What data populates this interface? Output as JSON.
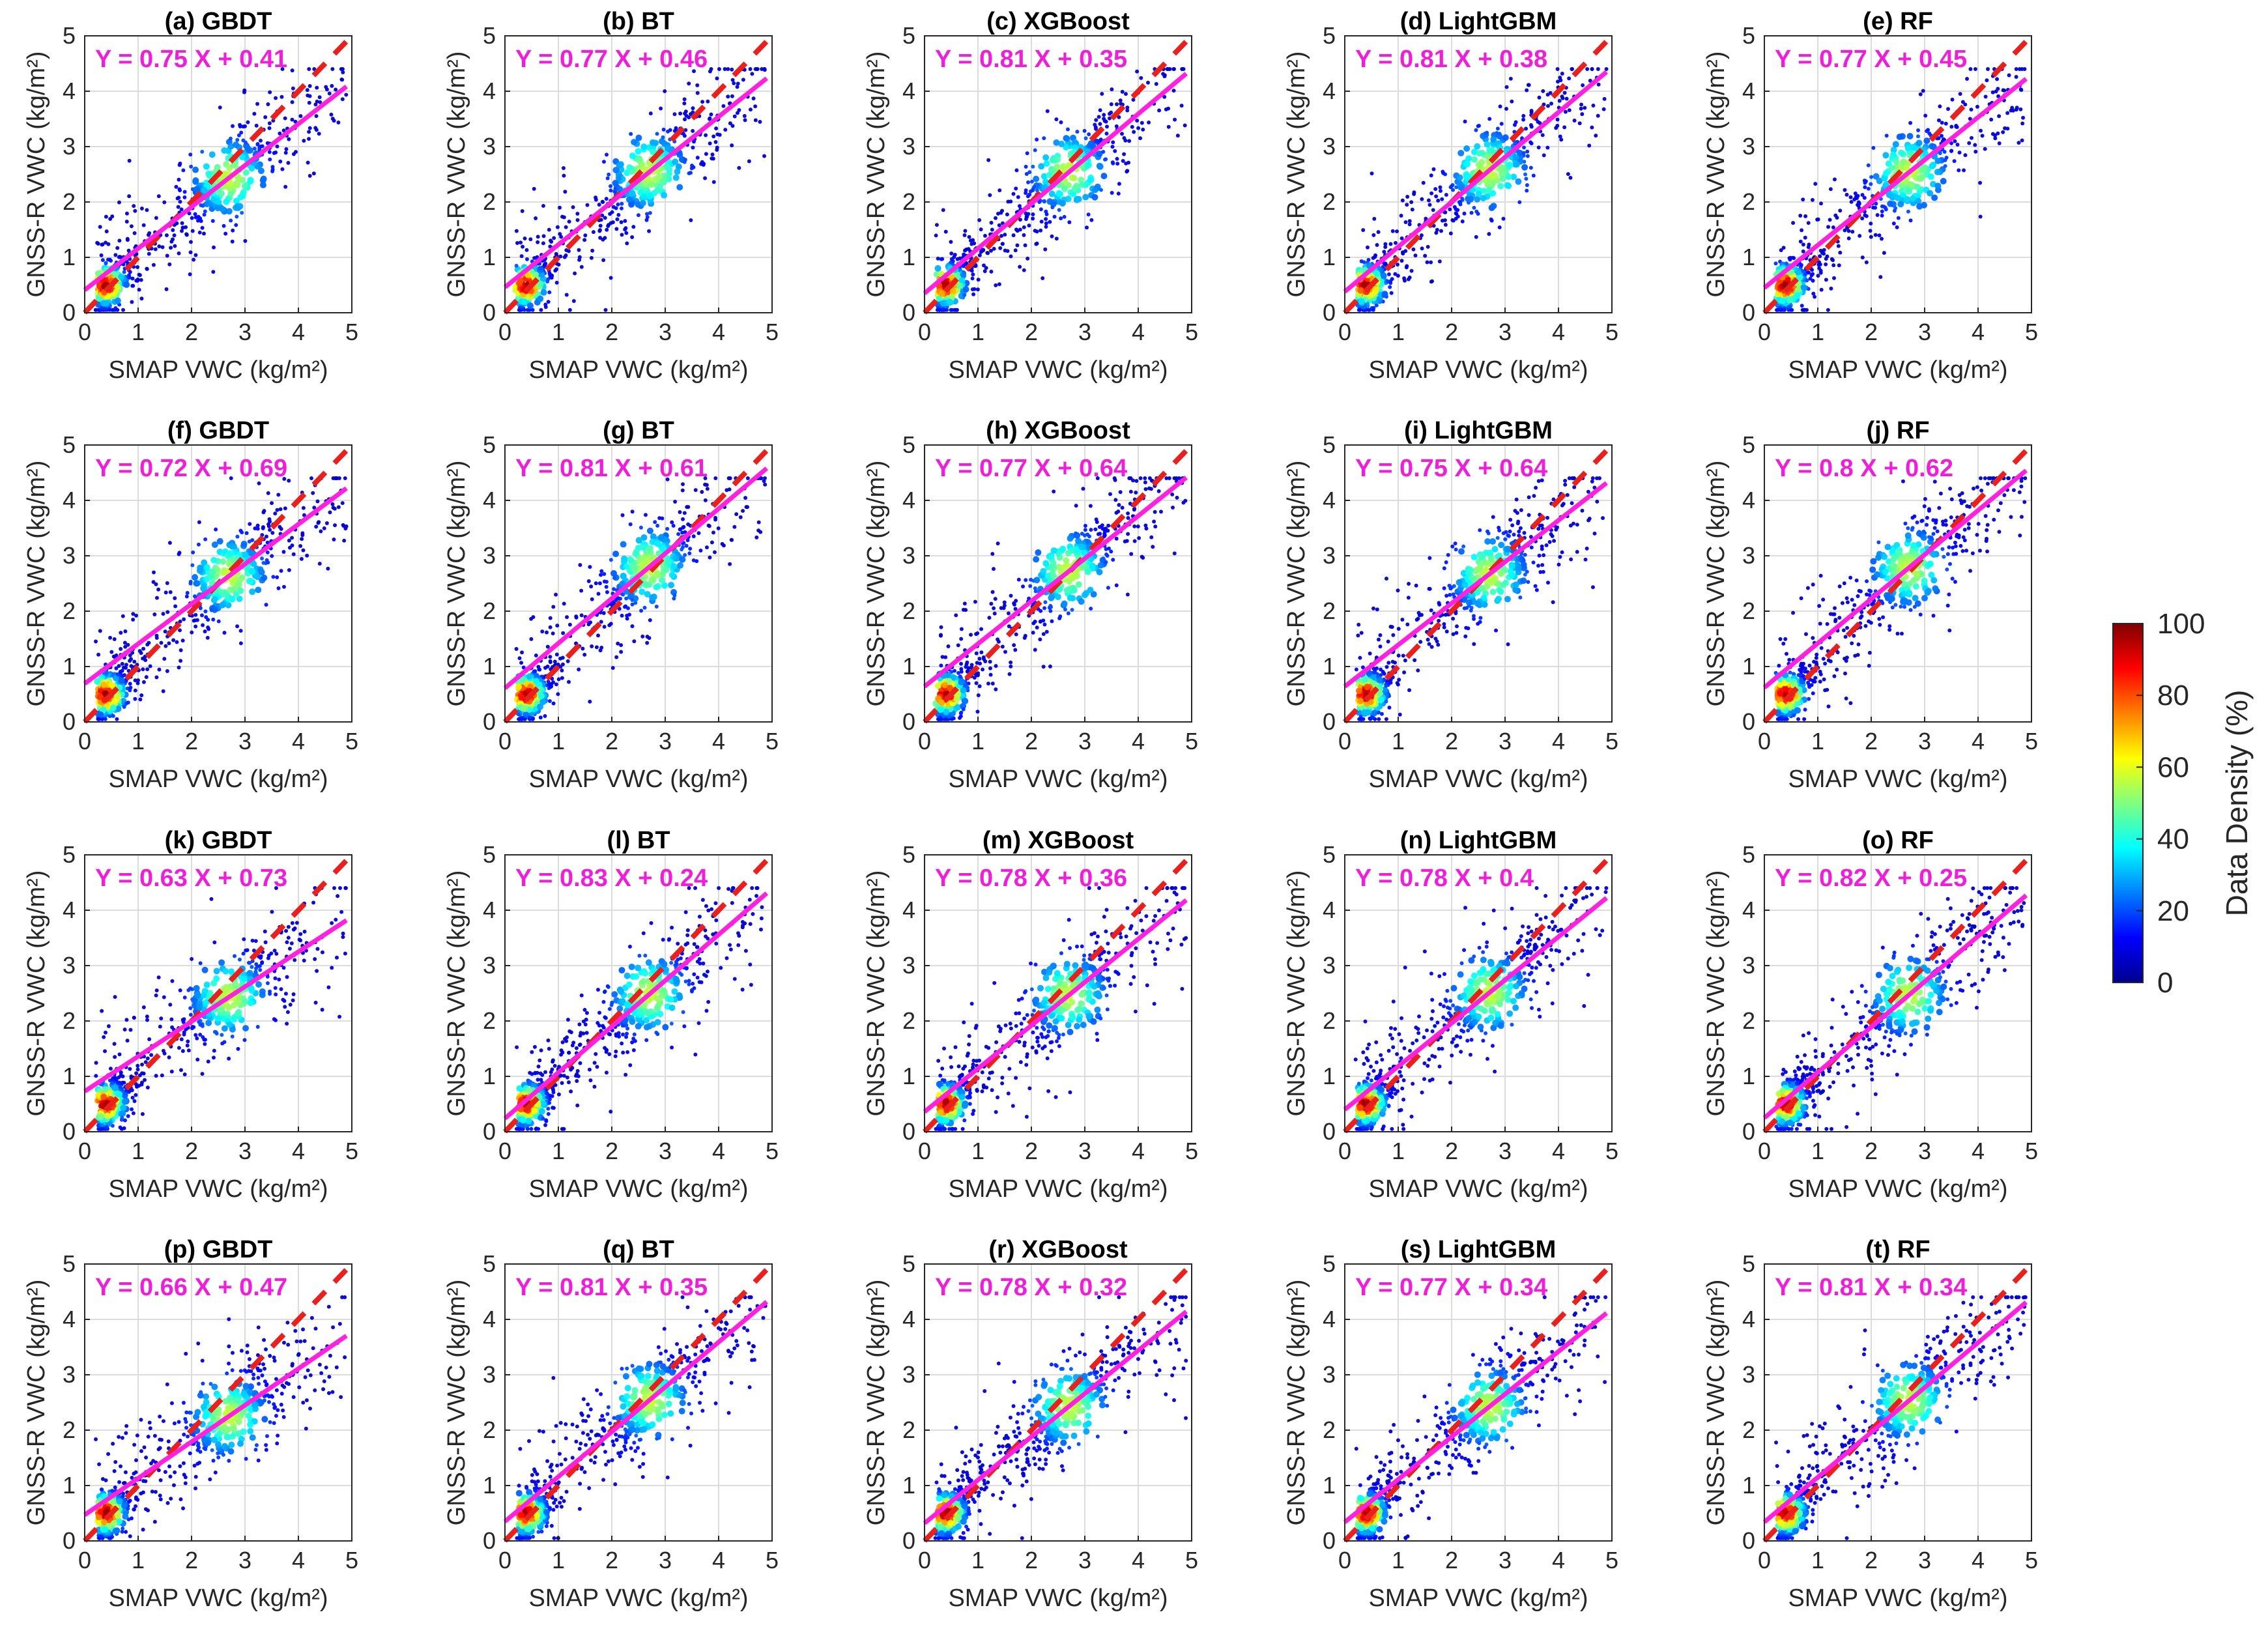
{
  "chart_data": {
    "type": "scatter",
    "layout": "grid 4 rows x 5 columns",
    "xlabel": "SMAP VWC (kg/m²)",
    "ylabel": "GNSS-R VWC (kg/m²)",
    "xlim": [
      0,
      5
    ],
    "ylim": [
      0,
      5
    ],
    "x_ticks": [
      "0",
      "1",
      "2",
      "3",
      "4",
      "5"
    ],
    "y_ticks": [
      "0",
      "1",
      "2",
      "3",
      "4",
      "5"
    ],
    "grid": true,
    "reference_line": {
      "name": "1:1 line",
      "style": "dashed",
      "color": "#e8201e",
      "from": [
        0,
        0
      ],
      "to": [
        5,
        5
      ]
    },
    "fit_line_color": "#ff22dd",
    "colors": {
      "equation": "#ee1fd8",
      "axis": "#262626",
      "grid": "#dcdcdc"
    },
    "colorbar": {
      "label": "Data Density (%)",
      "min": 0,
      "max": 100,
      "ticks": [
        "0",
        "20",
        "40",
        "60",
        "80",
        "100"
      ],
      "colormap": "jet"
    },
    "panels": [
      {
        "title": "(a) GBDT",
        "equation": "Y = 0.75 X + 0.41",
        "slope": 0.75,
        "intercept": 0.41
      },
      {
        "title": "(b) BT",
        "equation": "Y = 0.77 X + 0.46",
        "slope": 0.77,
        "intercept": 0.46
      },
      {
        "title": "(c) XGBoost",
        "equation": "Y = 0.81 X + 0.35",
        "slope": 0.81,
        "intercept": 0.35
      },
      {
        "title": "(d) LightGBM",
        "equation": "Y = 0.81 X + 0.38",
        "slope": 0.81,
        "intercept": 0.38
      },
      {
        "title": "(e) RF",
        "equation": "Y = 0.77 X + 0.45",
        "slope": 0.77,
        "intercept": 0.45
      },
      {
        "title": "(f) GBDT",
        "equation": "Y = 0.72 X + 0.69",
        "slope": 0.72,
        "intercept": 0.69
      },
      {
        "title": "(g) BT",
        "equation": "Y = 0.81 X + 0.61",
        "slope": 0.81,
        "intercept": 0.61
      },
      {
        "title": "(h) XGBoost",
        "equation": "Y = 0.77 X + 0.64",
        "slope": 0.77,
        "intercept": 0.64
      },
      {
        "title": "(i) LightGBM",
        "equation": "Y = 0.75 X + 0.64",
        "slope": 0.75,
        "intercept": 0.64
      },
      {
        "title": "(j) RF",
        "equation": "Y = 0.8 X + 0.62",
        "slope": 0.8,
        "intercept": 0.62
      },
      {
        "title": "(k) GBDT",
        "equation": "Y = 0.63 X + 0.73",
        "slope": 0.63,
        "intercept": 0.73
      },
      {
        "title": "(l) BT",
        "equation": "Y = 0.83 X + 0.24",
        "slope": 0.83,
        "intercept": 0.24
      },
      {
        "title": "(m) XGBoost",
        "equation": "Y = 0.78 X + 0.36",
        "slope": 0.78,
        "intercept": 0.36
      },
      {
        "title": "(n) LightGBM",
        "equation": "Y = 0.78 X + 0.4",
        "slope": 0.78,
        "intercept": 0.4
      },
      {
        "title": "(o) RF",
        "equation": "Y = 0.82 X + 0.25",
        "slope": 0.82,
        "intercept": 0.25
      },
      {
        "title": "(p) GBDT",
        "equation": "Y = 0.66 X + 0.47",
        "slope": 0.66,
        "intercept": 0.47
      },
      {
        "title": "(q) BT",
        "equation": "Y = 0.81 X + 0.35",
        "slope": 0.81,
        "intercept": 0.35
      },
      {
        "title": "(r) XGBoost",
        "equation": "Y = 0.78 X + 0.32",
        "slope": 0.78,
        "intercept": 0.32
      },
      {
        "title": "(s) LightGBM",
        "equation": "Y = 0.77 X + 0.34",
        "slope": 0.77,
        "intercept": 0.34
      },
      {
        "title": "(t) RF",
        "equation": "Y = 0.81 X + 0.34",
        "slope": 0.81,
        "intercept": 0.34
      }
    ]
  }
}
